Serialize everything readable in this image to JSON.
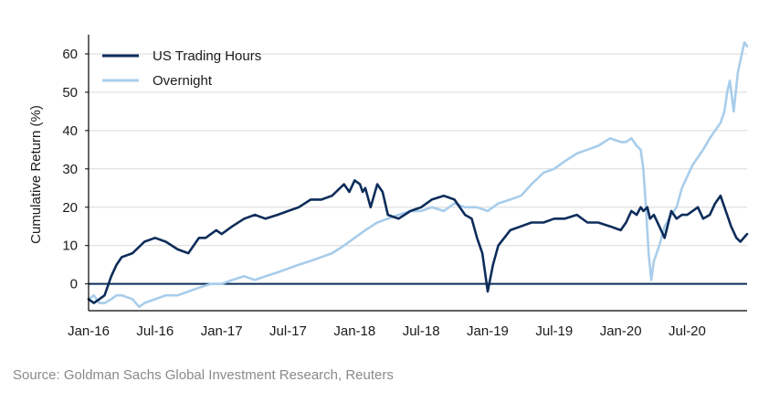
{
  "chart_data": {
    "type": "line",
    "title": "",
    "xlabel": "",
    "ylabel": "Cumulative Return (%)",
    "x_tick_labels": [
      "Jan-16",
      "Jul-16",
      "Jan-17",
      "Jul-17",
      "Jan-18",
      "Jul-18",
      "Jan-19",
      "Jul-19",
      "Jan-20",
      "Jul-20"
    ],
    "x_tick_positions": [
      2016.0,
      2016.5,
      2017.0,
      2017.5,
      2018.0,
      2018.5,
      2019.0,
      2019.5,
      2020.0,
      2020.5
    ],
    "xlim": [
      2016.0,
      2020.95
    ],
    "ylim": [
      -7,
      65
    ],
    "yticks": [
      0,
      10,
      20,
      30,
      40,
      50,
      60
    ],
    "grid": "horizontal",
    "legend_position": "top-left",
    "series": [
      {
        "name": "US Trading Hours",
        "color": "#0d2d5a",
        "x": [
          2016.0,
          2016.04,
          2016.08,
          2016.12,
          2016.17,
          2016.21,
          2016.25,
          2016.33,
          2016.42,
          2016.5,
          2016.58,
          2016.67,
          2016.75,
          2016.83,
          2016.88,
          2016.92,
          2016.96,
          2017.0,
          2017.08,
          2017.17,
          2017.25,
          2017.33,
          2017.42,
          2017.5,
          2017.58,
          2017.67,
          2017.75,
          2017.83,
          2017.92,
          2017.96,
          2018.0,
          2018.04,
          2018.06,
          2018.08,
          2018.12,
          2018.17,
          2018.21,
          2018.25,
          2018.33,
          2018.42,
          2018.5,
          2018.58,
          2018.67,
          2018.75,
          2018.79,
          2018.83,
          2018.88,
          2018.92,
          2018.96,
          2018.98,
          2019.0,
          2019.04,
          2019.08,
          2019.17,
          2019.25,
          2019.33,
          2019.42,
          2019.5,
          2019.58,
          2019.67,
          2019.75,
          2019.83,
          2019.92,
          2020.0,
          2020.04,
          2020.08,
          2020.12,
          2020.15,
          2020.17,
          2020.2,
          2020.22,
          2020.25,
          2020.29,
          2020.33,
          2020.38,
          2020.42,
          2020.46,
          2020.5,
          2020.54,
          2020.58,
          2020.62,
          2020.67,
          2020.71,
          2020.75,
          2020.79,
          2020.83,
          2020.87,
          2020.9,
          2020.95
        ],
        "y": [
          -4,
          -5,
          -4,
          -3,
          2,
          5,
          7,
          8,
          11,
          12,
          11,
          9,
          8,
          12,
          12,
          13,
          14,
          13,
          15,
          17,
          18,
          17,
          18,
          19,
          20,
          22,
          22,
          23,
          26,
          24,
          27,
          26,
          24,
          25,
          20,
          26,
          24,
          18,
          17,
          19,
          20,
          22,
          23,
          22,
          20,
          18,
          17,
          12,
          8,
          3,
          -2,
          5,
          10,
          14,
          15,
          16,
          16,
          17,
          17,
          18,
          16,
          16,
          15,
          14,
          16,
          19,
          18,
          20,
          19,
          20,
          17,
          18,
          15,
          12,
          19,
          17,
          18,
          18,
          19,
          20,
          17,
          18,
          21,
          23,
          19,
          15,
          12,
          11,
          13
        ]
      },
      {
        "name": "Overnight",
        "color": "#a8cdeb",
        "x": [
          2016.0,
          2016.04,
          2016.08,
          2016.12,
          2016.17,
          2016.21,
          2016.25,
          2016.33,
          2016.38,
          2016.42,
          2016.5,
          2016.58,
          2016.67,
          2016.75,
          2016.83,
          2016.92,
          2017.0,
          2017.08,
          2017.17,
          2017.25,
          2017.33,
          2017.42,
          2017.5,
          2017.58,
          2017.67,
          2017.75,
          2017.83,
          2017.92,
          2018.0,
          2018.08,
          2018.17,
          2018.25,
          2018.33,
          2018.42,
          2018.5,
          2018.58,
          2018.67,
          2018.75,
          2018.83,
          2018.92,
          2019.0,
          2019.08,
          2019.17,
          2019.25,
          2019.33,
          2019.42,
          2019.5,
          2019.58,
          2019.67,
          2019.75,
          2019.83,
          2019.92,
          2020.0,
          2020.04,
          2020.08,
          2020.12,
          2020.15,
          2020.17,
          2020.19,
          2020.21,
          2020.23,
          2020.25,
          2020.29,
          2020.33,
          2020.38,
          2020.42,
          2020.46,
          2020.5,
          2020.54,
          2020.58,
          2020.62,
          2020.67,
          2020.71,
          2020.75,
          2020.78,
          2020.8,
          2020.82,
          2020.85,
          2020.88,
          2020.91,
          2020.93,
          2020.95
        ],
        "y": [
          -4,
          -3,
          -5,
          -5,
          -4,
          -3,
          -3,
          -4,
          -6,
          -5,
          -4,
          -3,
          -3,
          -2,
          -1,
          0,
          0,
          1,
          2,
          1,
          2,
          3,
          4,
          5,
          6,
          7,
          8,
          10,
          12,
          14,
          16,
          17,
          18,
          19,
          19,
          20,
          19,
          21,
          20,
          20,
          19,
          21,
          22,
          23,
          26,
          29,
          30,
          32,
          34,
          35,
          36,
          38,
          37,
          37,
          38,
          36,
          35,
          30,
          20,
          8,
          1,
          6,
          10,
          15,
          18,
          20,
          25,
          28,
          31,
          33,
          35,
          38,
          40,
          42,
          45,
          50,
          53,
          45,
          55,
          60,
          63,
          62
        ]
      }
    ],
    "source": "Source: Goldman Sachs Global Investment Research, Reuters"
  }
}
